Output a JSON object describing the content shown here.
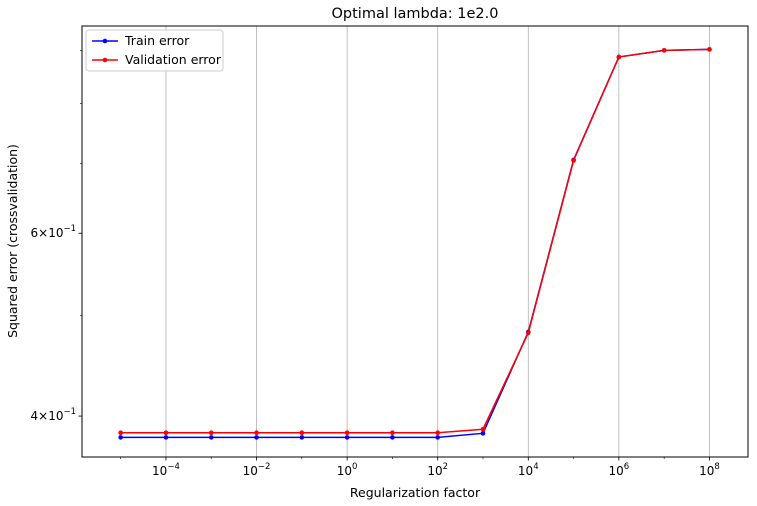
{
  "chart_data": {
    "type": "line",
    "title": "Optimal lambda: 1e2.0",
    "xlabel": "Regularization factor",
    "ylabel": "Squared error (crossvalidation)",
    "xscale": "log",
    "yscale": "log",
    "xlim": [
      1.4e-06,
      710000000.0
    ],
    "ylim": [
      0.3653,
      0.95
    ],
    "grid": "vertical major gridlines",
    "legend_position": "upper left",
    "x": [
      1e-05,
      0.0001,
      0.001,
      0.01,
      0.1,
      1.0,
      10.0,
      100.0,
      1000.0,
      10000.0,
      100000.0,
      1000000.0,
      10000000.0,
      100000000.0
    ],
    "series": [
      {
        "name": "Train error",
        "color": "#0000ff",
        "values": [
          0.3815,
          0.3815,
          0.3815,
          0.3815,
          0.3815,
          0.3815,
          0.3815,
          0.3815,
          0.385,
          0.482,
          0.706,
          0.887,
          0.9,
          0.902
        ]
      },
      {
        "name": "Validation error",
        "color": "#ff0000",
        "values": [
          0.3855,
          0.3855,
          0.3855,
          0.3855,
          0.3855,
          0.3855,
          0.3855,
          0.3855,
          0.3885,
          0.481,
          0.705,
          0.887,
          0.9,
          0.902
        ]
      }
    ],
    "x_ticks": [
      {
        "value": 0.0001,
        "base": "10",
        "exp": "−4"
      },
      {
        "value": 0.01,
        "base": "10",
        "exp": "−2"
      },
      {
        "value": 1.0,
        "base": "10",
        "exp": "0"
      },
      {
        "value": 100.0,
        "base": "10",
        "exp": "2"
      },
      {
        "value": 10000.0,
        "base": "10",
        "exp": "4"
      },
      {
        "value": 1000000.0,
        "base": "10",
        "exp": "6"
      },
      {
        "value": 100000000.0,
        "base": "10",
        "exp": "8"
      }
    ],
    "y_ticks": [
      {
        "value": 0.4,
        "mant": "4",
        "times": "×",
        "base": "10",
        "exp": "−1"
      },
      {
        "value": 0.6,
        "mant": "6",
        "times": "×",
        "base": "10",
        "exp": "−1"
      }
    ],
    "y_minor_ticks": [
      0.5,
      0.7,
      0.8,
      0.9
    ]
  }
}
